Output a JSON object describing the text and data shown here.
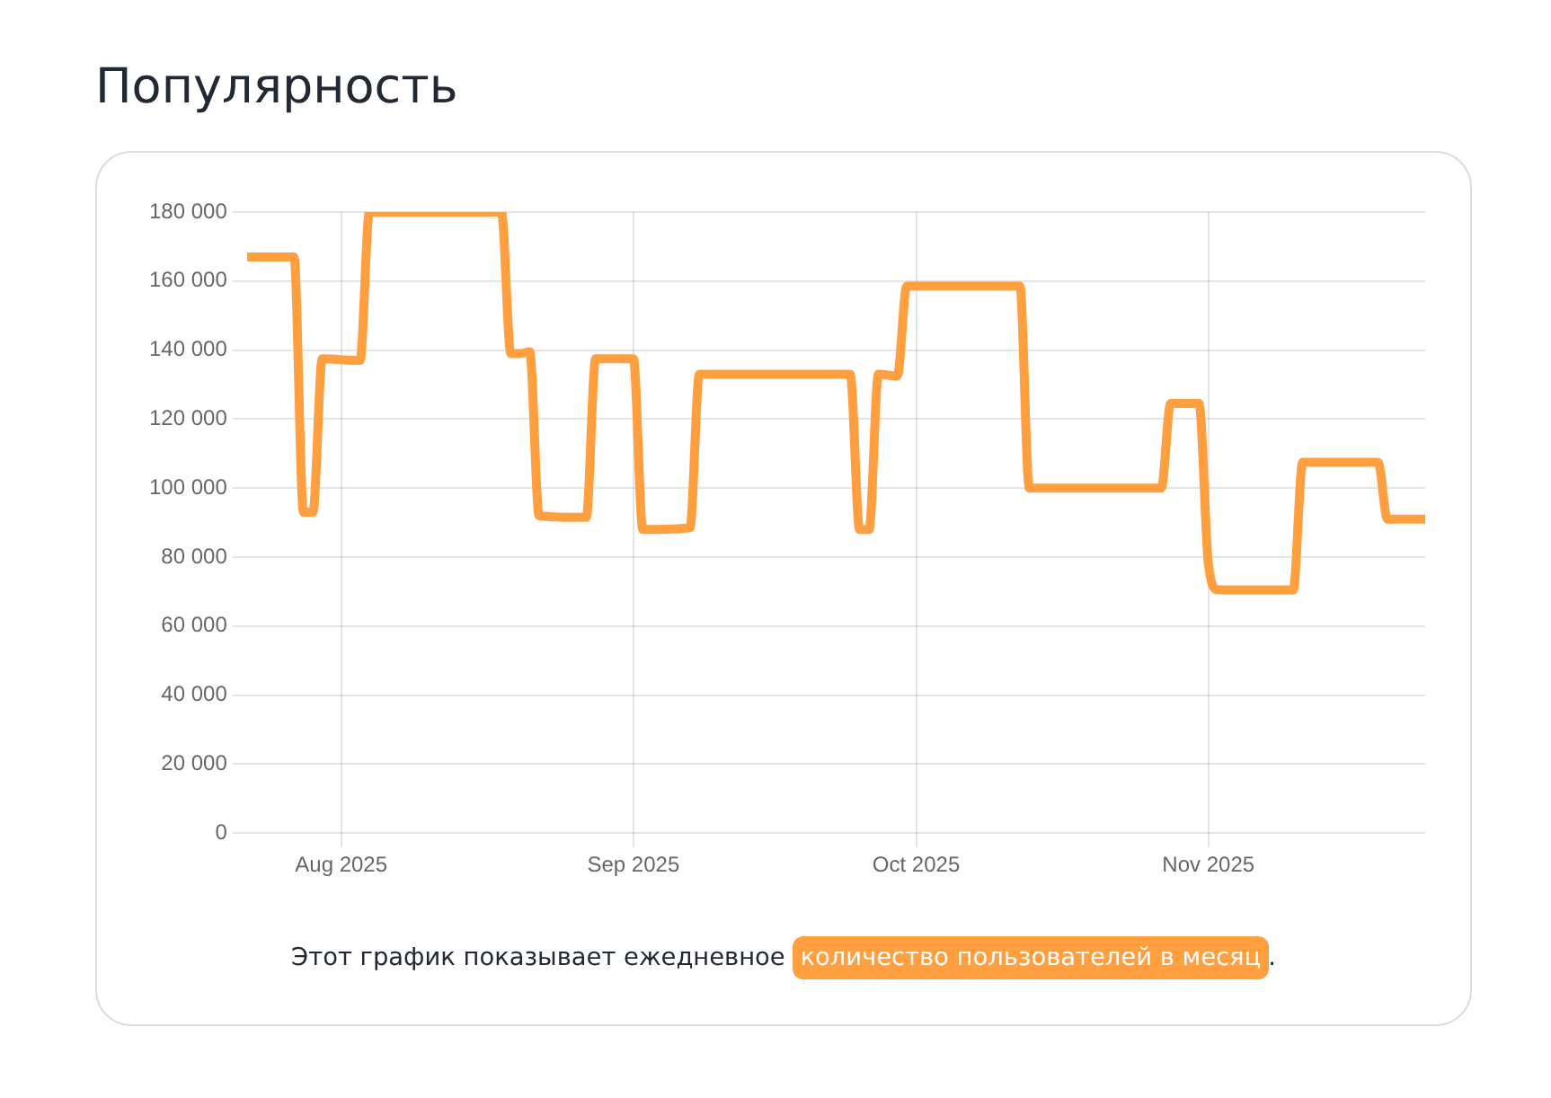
{
  "chart_data": {
    "type": "line",
    "title": "Популярность",
    "annotations": [
      "Этот график показывает ежедневное",
      "."
    ],
    "series": [
      {
        "name": "количество пользователей в месяц",
        "color": "#ff9f40",
        "x": [
          "2025-07-22",
          "2025-07-27",
          "2025-07-28",
          "2025-07-29",
          "2025-07-30",
          "2025-08-03",
          "2025-08-04",
          "2025-08-18",
          "2025-08-19",
          "2025-08-20",
          "2025-08-21",
          "2025-08-22",
          "2025-08-27",
          "2025-08-28",
          "2025-09-01",
          "2025-09-02",
          "2025-09-07",
          "2025-09-08",
          "2025-09-24",
          "2025-09-25",
          "2025-09-26",
          "2025-09-27",
          "2025-09-29",
          "2025-09-30",
          "2025-10-12",
          "2025-10-13",
          "2025-10-27",
          "2025-10-28",
          "2025-10-31",
          "2025-11-01",
          "2025-11-02",
          "2025-11-10",
          "2025-11-11",
          "2025-11-19",
          "2025-11-20",
          "2025-11-24"
        ],
        "values": [
          167000,
          167000,
          93000,
          93000,
          137500,
          137000,
          180000,
          180000,
          139000,
          139000,
          139500,
          92000,
          91500,
          137500,
          137500,
          88000,
          88500,
          133000,
          133000,
          88000,
          88000,
          133000,
          132500,
          158500,
          158500,
          100000,
          100000,
          124500,
          124500,
          78000,
          70500,
          70500,
          107500,
          107500,
          91000,
          91000
        ]
      }
    ],
    "xlim": [
      "2025-07-22",
      "2025-11-24"
    ],
    "xticks": [
      {
        "value": "2025-08-01",
        "label": "Aug 2025"
      },
      {
        "value": "2025-09-01",
        "label": "Sep 2025"
      },
      {
        "value": "2025-10-01",
        "label": "Oct 2025"
      },
      {
        "value": "2025-11-01",
        "label": "Nov 2025"
      }
    ],
    "ylim": [
      0,
      180000
    ],
    "yticks": [
      {
        "value": 0,
        "label": "0"
      },
      {
        "value": 20000,
        "label": "20 000"
      },
      {
        "value": 40000,
        "label": "40 000"
      },
      {
        "value": 60000,
        "label": "60 000"
      },
      {
        "value": 80000,
        "label": "80 000"
      },
      {
        "value": 100000,
        "label": "100 000"
      },
      {
        "value": 120000,
        "label": "120 000"
      },
      {
        "value": 140000,
        "label": "140 000"
      },
      {
        "value": 160000,
        "label": "160 000"
      },
      {
        "value": 180000,
        "label": "180 000"
      }
    ],
    "grid": true,
    "legend": false,
    "marker": "none",
    "line_style": "solid"
  }
}
